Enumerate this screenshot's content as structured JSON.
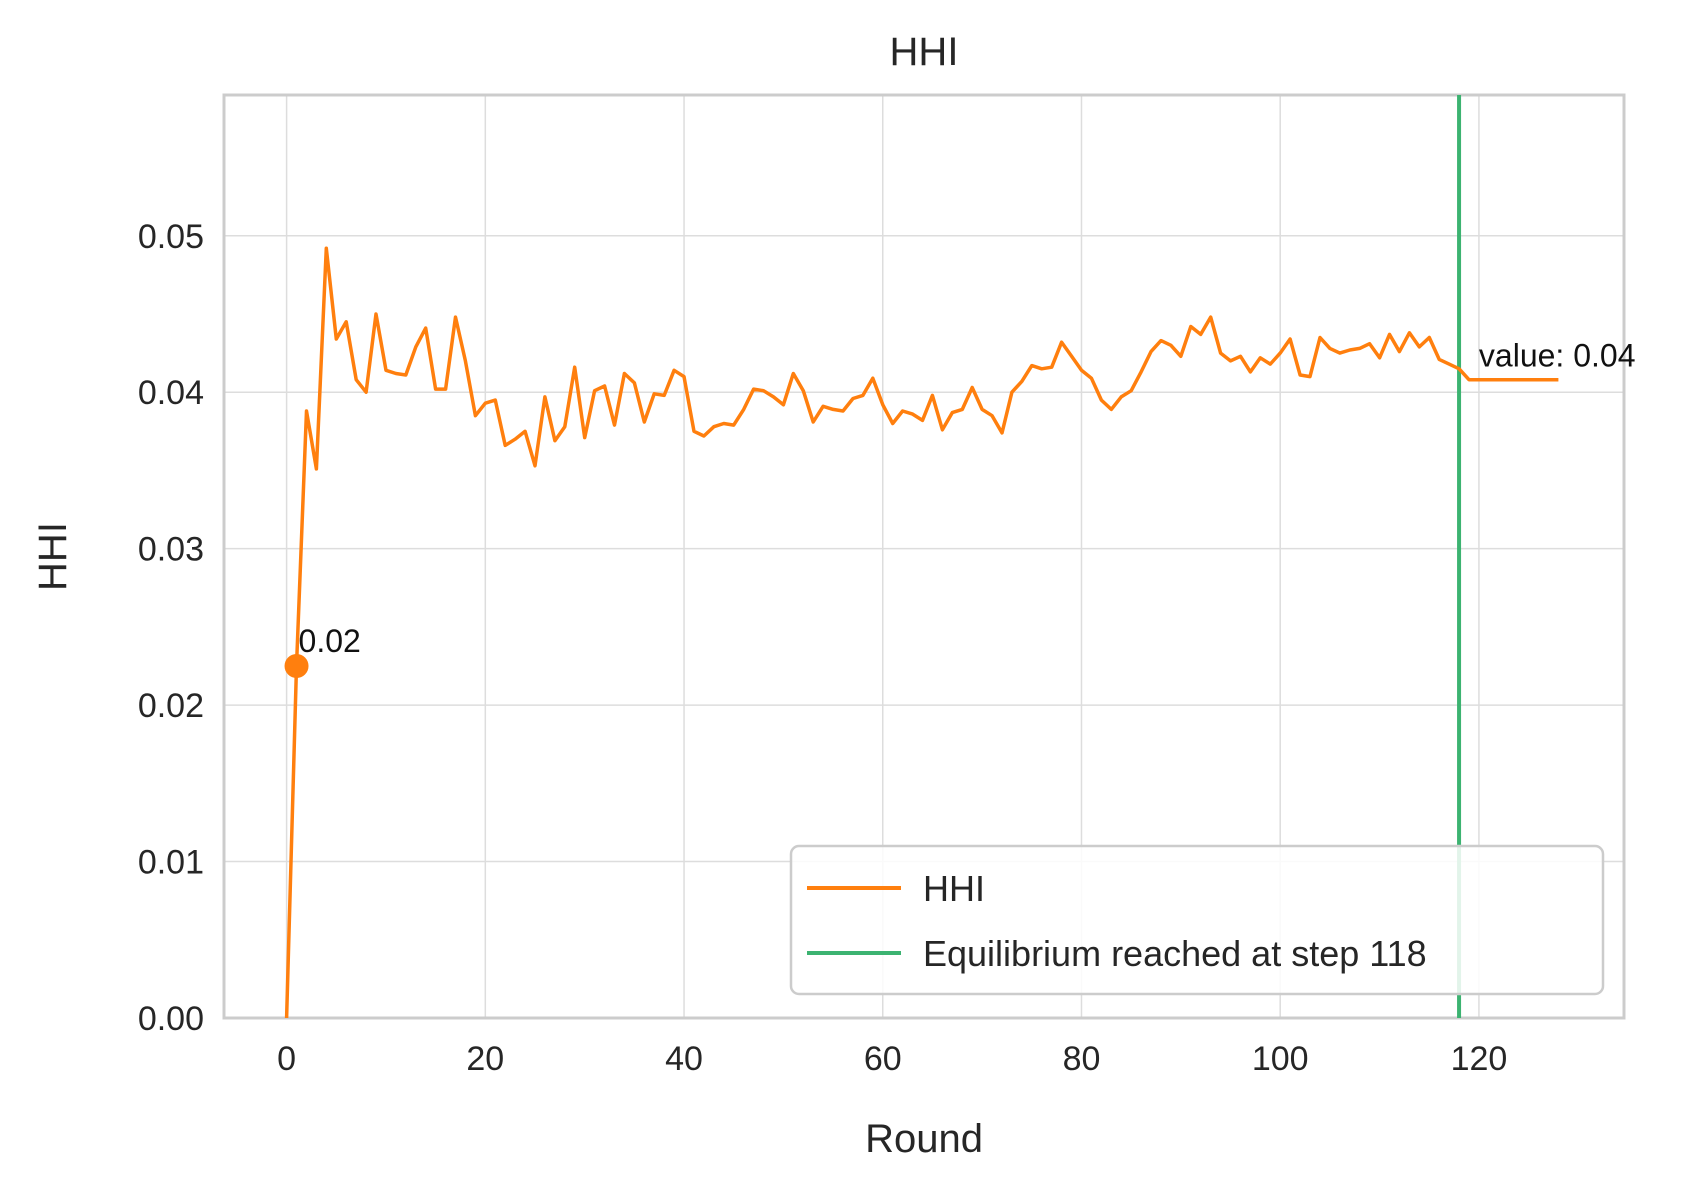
{
  "chart_data": {
    "type": "line",
    "title": "HHI",
    "xlabel": "Round",
    "ylabel": "HHI",
    "xlim": [
      -6.3,
      134.6
    ],
    "ylim": [
      0,
      0.059
    ],
    "x_ticks": [
      "0",
      "20",
      "40",
      "60",
      "80",
      "100",
      "120"
    ],
    "y_ticks": [
      "0.00",
      "0.01",
      "0.02",
      "0.03",
      "0.04",
      "0.05"
    ],
    "grid": true,
    "legend_position": "lower-right",
    "colors": {
      "hhi": "#ff7f0e",
      "equilibrium": "#3cb371"
    },
    "series": [
      {
        "name": "HHI",
        "x": [
          0,
          1,
          2,
          3,
          4,
          5,
          6,
          7,
          8,
          9,
          10,
          11,
          12,
          13,
          14,
          15,
          16,
          17,
          18,
          19,
          20,
          21,
          22,
          23,
          24,
          25,
          26,
          27,
          28,
          29,
          30,
          31,
          32,
          33,
          34,
          35,
          36,
          37,
          38,
          39,
          40,
          41,
          42,
          43,
          44,
          45,
          46,
          47,
          48,
          49,
          50,
          51,
          52,
          53,
          54,
          55,
          56,
          57,
          58,
          59,
          60,
          61,
          62,
          63,
          64,
          65,
          66,
          67,
          68,
          69,
          70,
          71,
          72,
          73,
          74,
          75,
          76,
          77,
          78,
          79,
          80,
          81,
          82,
          83,
          84,
          85,
          86,
          87,
          88,
          89,
          90,
          91,
          92,
          93,
          94,
          95,
          96,
          97,
          98,
          99,
          100,
          101,
          102,
          103,
          104,
          105,
          106,
          107,
          108,
          109,
          110,
          111,
          112,
          113,
          114,
          115,
          116,
          117,
          118,
          119,
          120,
          121,
          122,
          123,
          124,
          125,
          126,
          127,
          128
        ],
        "values": [
          0.0,
          0.0225,
          0.0388,
          0.0351,
          0.0492,
          0.0434,
          0.0445,
          0.0408,
          0.04,
          0.045,
          0.0414,
          0.0412,
          0.0411,
          0.0429,
          0.0441,
          0.0402,
          0.0402,
          0.0448,
          0.042,
          0.0385,
          0.0393,
          0.0395,
          0.0366,
          0.037,
          0.0375,
          0.0353,
          0.0397,
          0.0369,
          0.0378,
          0.0416,
          0.0371,
          0.0401,
          0.0404,
          0.0379,
          0.0412,
          0.0406,
          0.0381,
          0.0399,
          0.0398,
          0.0414,
          0.041,
          0.0375,
          0.0372,
          0.0378,
          0.038,
          0.0379,
          0.0389,
          0.0402,
          0.0401,
          0.0397,
          0.0392,
          0.0412,
          0.0401,
          0.0381,
          0.0391,
          0.0389,
          0.0388,
          0.0396,
          0.0398,
          0.0409,
          0.0392,
          0.038,
          0.0388,
          0.0386,
          0.0382,
          0.0398,
          0.0376,
          0.0387,
          0.0389,
          0.0403,
          0.0389,
          0.0385,
          0.0374,
          0.04,
          0.0407,
          0.0417,
          0.0415,
          0.0416,
          0.0432,
          0.0423,
          0.0414,
          0.0409,
          0.0395,
          0.0389,
          0.0397,
          0.0401,
          0.0413,
          0.0426,
          0.0433,
          0.043,
          0.0423,
          0.0442,
          0.0437,
          0.0448,
          0.0425,
          0.042,
          0.0423,
          0.0413,
          0.0422,
          0.0418,
          0.0425,
          0.0434,
          0.0411,
          0.041,
          0.0435,
          0.0428,
          0.0425,
          0.0427,
          0.0428,
          0.0431,
          0.0422,
          0.0437,
          0.0426,
          0.0438,
          0.0429,
          0.0435,
          0.0421,
          0.0418,
          0.0415,
          0.0408,
          0.0408,
          0.0408,
          0.0408,
          0.0408,
          0.0408,
          0.0408,
          0.0408,
          0.0408,
          0.0408
        ]
      }
    ],
    "equilibrium": {
      "label": "Equilibrium reached at step 118",
      "x": 118
    },
    "marker": {
      "x": 1,
      "y": 0.0225,
      "label": "0.02"
    },
    "end_annotation": {
      "x": 120,
      "y": 0.0424,
      "label": "value: 0.04"
    }
  }
}
